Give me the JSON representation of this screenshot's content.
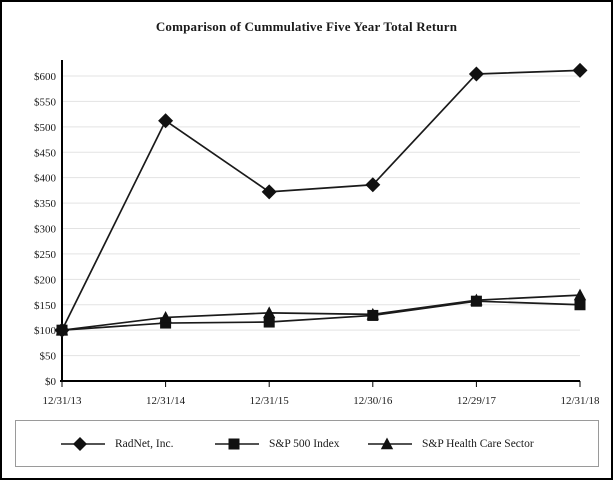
{
  "chart_data": {
    "type": "line",
    "title": "Comparison of Cummulative Five Year Total Return",
    "categories": [
      "12/31/13",
      "12/31/14",
      "12/31/15",
      "12/30/16",
      "12/29/17",
      "12/31/18"
    ],
    "series": [
      {
        "name": "RadNet, Inc.",
        "marker": "diamond",
        "values": [
          100,
          512,
          372,
          386,
          604,
          611
        ]
      },
      {
        "name": "S&P 500 Index",
        "marker": "square",
        "values": [
          100,
          114,
          116,
          129,
          157,
          150
        ]
      },
      {
        "name": "S&P Health Care Sector",
        "marker": "triangle",
        "values": [
          100,
          125,
          134,
          131,
          159,
          169
        ]
      }
    ],
    "xlabel": "",
    "ylabel": "",
    "ylim": [
      0,
      600
    ],
    "y_tick_step": 50,
    "y_tick_prefix": "$",
    "grid": "horizontal",
    "legend_position": "bottom",
    "colors": {
      "line": "#1a1a1a",
      "marker": "#111111",
      "grid": "#e3e3e3",
      "axis": "#000000",
      "legend_border": "#9a9a9a",
      "text": "#1a1a1a"
    }
  }
}
